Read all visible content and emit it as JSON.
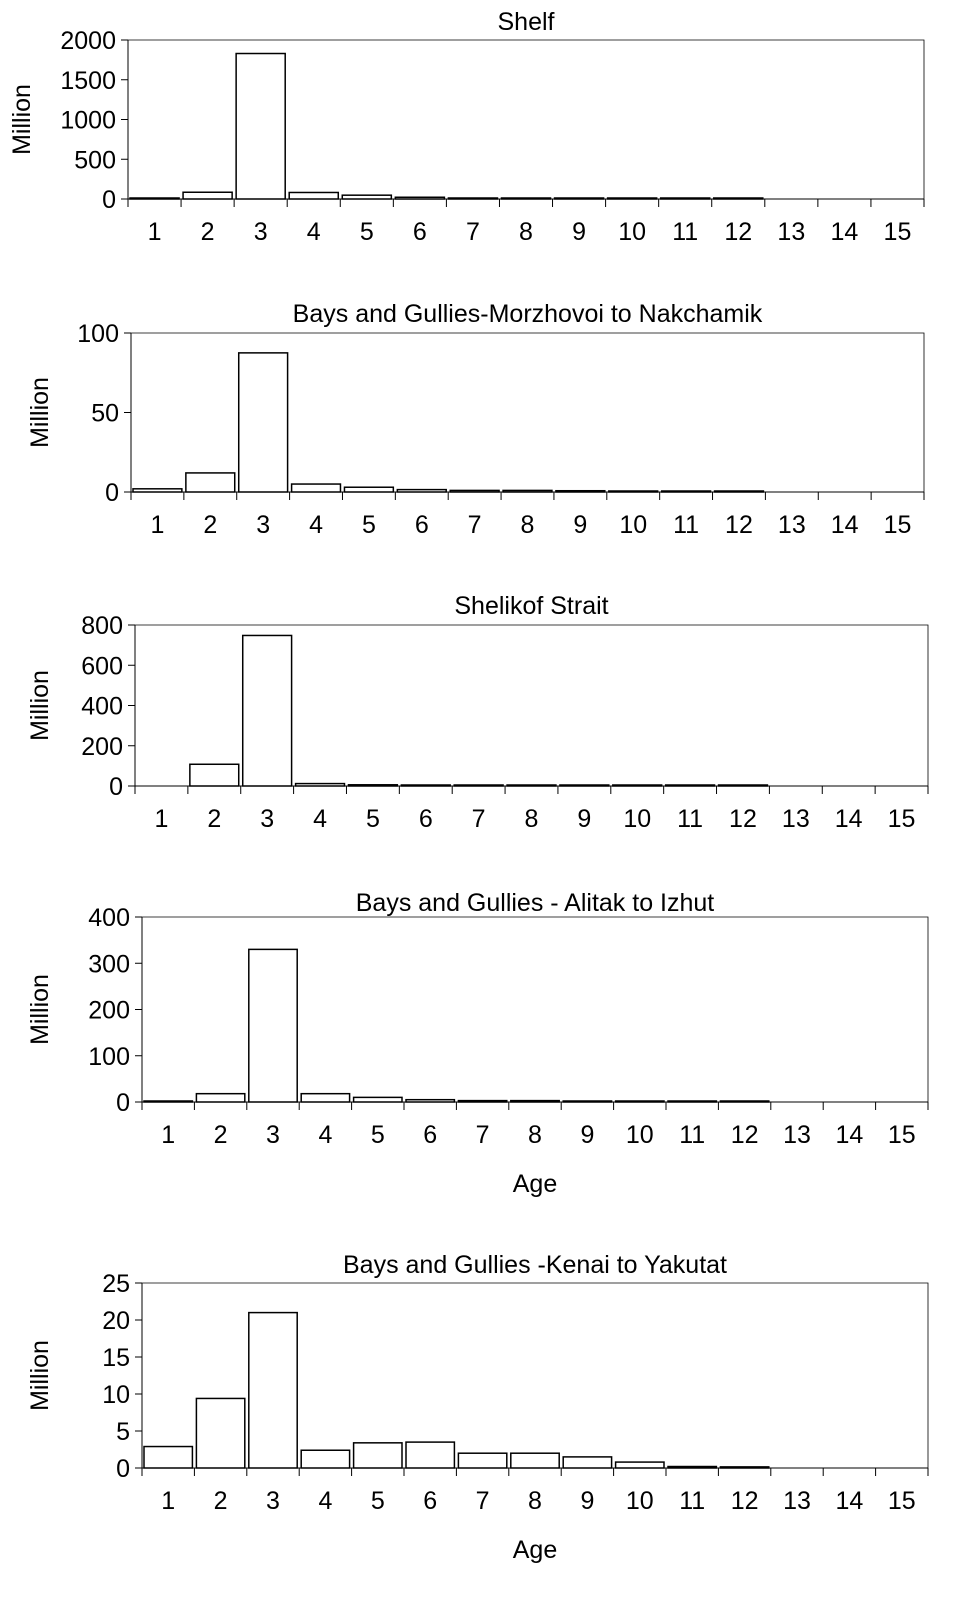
{
  "chart_data": [
    {
      "type": "bar",
      "title": "Shelf",
      "xlabel": "",
      "ylabel": "Million",
      "ylim": [
        0,
        2000
      ],
      "yticks": [
        0,
        500,
        1000,
        1500,
        2000
      ],
      "categories": [
        "1",
        "2",
        "3",
        "4",
        "5",
        "6",
        "7",
        "8",
        "9",
        "10",
        "11",
        "12",
        "13",
        "14",
        "15"
      ],
      "values": [
        5,
        85,
        1830,
        82,
        48,
        22,
        12,
        9,
        7,
        5,
        4,
        3,
        0,
        0,
        0
      ]
    },
    {
      "type": "bar",
      "title": "Bays and Gullies-Morzhovoi to Nakchamik",
      "xlabel": "",
      "ylabel": "Million",
      "ylim": [
        0,
        100
      ],
      "yticks": [
        0,
        50,
        100
      ],
      "categories": [
        "1",
        "2",
        "3",
        "4",
        "5",
        "6",
        "7",
        "8",
        "9",
        "10",
        "11",
        "12",
        "13",
        "14",
        "15"
      ],
      "values": [
        2,
        12,
        87.5,
        5,
        3,
        1.5,
        1,
        1,
        0.8,
        0.5,
        0.3,
        0.2,
        0,
        0,
        0
      ]
    },
    {
      "type": "bar",
      "title": "Shelikof Strait",
      "xlabel": "",
      "ylabel": "Million",
      "ylim": [
        0,
        800
      ],
      "yticks": [
        0,
        200,
        400,
        600,
        800
      ],
      "categories": [
        "1",
        "2",
        "3",
        "4",
        "5",
        "6",
        "7",
        "8",
        "9",
        "10",
        "11",
        "12",
        "13",
        "14",
        "15"
      ],
      "values": [
        0,
        108,
        748,
        12,
        6,
        4,
        3,
        3,
        2,
        2,
        2,
        1,
        0,
        0,
        0
      ]
    },
    {
      "type": "bar",
      "title": "Bays and Gullies - Alitak to Izhut",
      "xlabel": "Age",
      "ylabel": "Million",
      "ylim": [
        0,
        400
      ],
      "yticks": [
        0,
        100,
        200,
        300,
        400
      ],
      "categories": [
        "1",
        "2",
        "3",
        "4",
        "5",
        "6",
        "7",
        "8",
        "9",
        "10",
        "11",
        "12",
        "13",
        "14",
        "15"
      ],
      "values": [
        1,
        18,
        330,
        18,
        10,
        5,
        3,
        3,
        2,
        1.5,
        1,
        0.5,
        0,
        0,
        0
      ]
    },
    {
      "type": "bar",
      "title": "Bays and Gullies -Kenai to Yakutat",
      "xlabel": "Age",
      "ylabel": "Million",
      "ylim": [
        0,
        25
      ],
      "yticks": [
        0,
        5,
        10,
        15,
        20,
        25
      ],
      "categories": [
        "1",
        "2",
        "3",
        "4",
        "5",
        "6",
        "7",
        "8",
        "9",
        "10",
        "11",
        "12",
        "13",
        "14",
        "15"
      ],
      "values": [
        2.9,
        9.4,
        21,
        2.4,
        3.4,
        3.5,
        2,
        2,
        1.5,
        0.8,
        0.2,
        0.15,
        0,
        0,
        0
      ]
    }
  ]
}
